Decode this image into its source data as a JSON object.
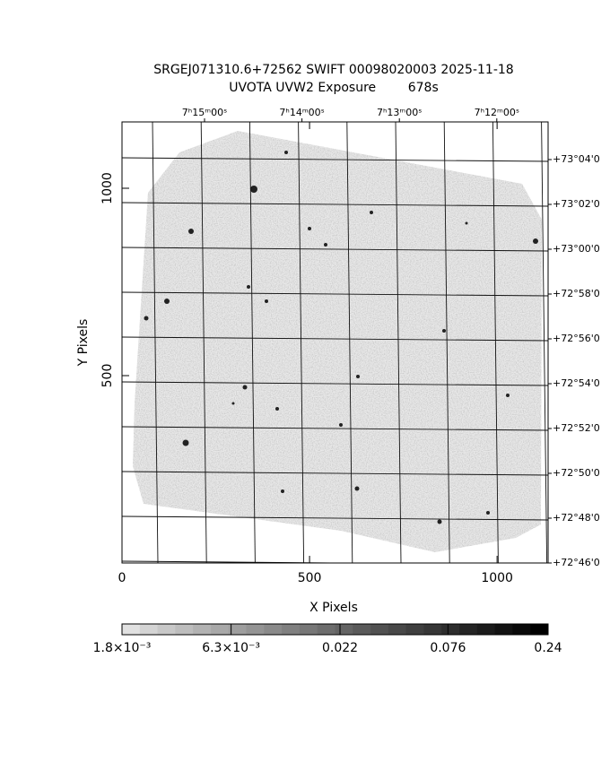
{
  "chart_data": {
    "type": "image",
    "title": "SRGEJ071310.6+72562 SWIFT 00098020003 2025-11-18",
    "subtitle": "UVOTA UVW2 Exposure        678s",
    "xlabel": "X Pixels",
    "ylabel": "Y Pixels",
    "xlim": [
      0,
      1136
    ],
    "ylim": [
      0,
      1177
    ],
    "xticks": [
      0,
      500,
      1000
    ],
    "yticks": [
      500,
      1000
    ],
    "ra_labels": [
      "7ʰ15ᵐ00ˢ",
      "7ʰ14ᵐ00ˢ",
      "7ʰ13ᵐ00ˢ",
      "7ʰ12ᵐ00ˢ"
    ],
    "dec_labels": [
      "+73°04'0",
      "+73°02'0",
      "+73°00'0",
      "+72°58'0",
      "+72°56'0",
      "+72°54'0",
      "+72°52'0",
      "+72°50'0",
      "+72°48'0",
      "+72°46'0"
    ],
    "colorbar": {
      "scale": "log",
      "lim": [
        0.0018,
        0.24
      ],
      "ticks": [
        {
          "value": 0.0018,
          "label": "1.8×10⁻³"
        },
        {
          "value": 0.0063,
          "label": "6.3×10⁻³"
        },
        0.022,
        0.076,
        0.24
      ]
    }
  }
}
